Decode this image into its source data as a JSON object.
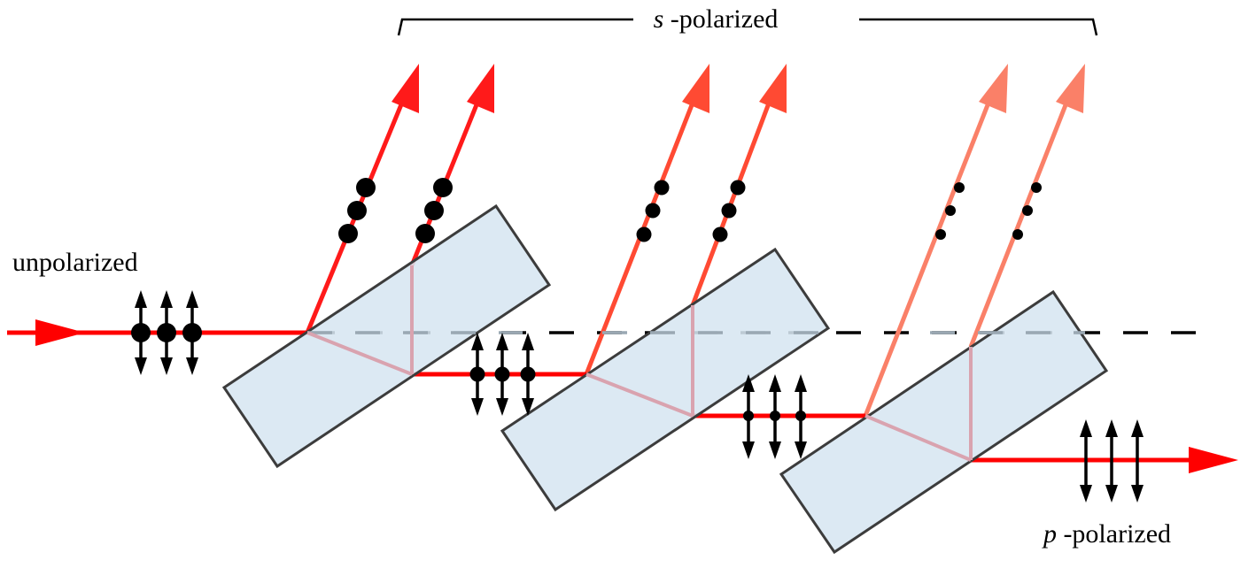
{
  "labels": {
    "incoming": "unpolarized",
    "reflected_symbol": "s",
    "reflected_suffix": " -polarized",
    "transmitted_symbol": "p",
    "transmitted_suffix": " -polarized"
  },
  "colors": {
    "beam_primary": "#ff0000",
    "beam_reflect_1": "#ff1a1a",
    "beam_reflect_2": "#ff4a33",
    "beam_reflect_3": "#fa8068",
    "plate_fill": "#d7e6f1",
    "plate_stroke": "#3c3c3c",
    "internal_path": "#d9a3af",
    "normal_line": "#9aa8b3",
    "marker": "#000000"
  },
  "plates": [
    {
      "name": "glass-plate-1"
    },
    {
      "name": "glass-plate-2"
    },
    {
      "name": "glass-plate-3"
    }
  ]
}
